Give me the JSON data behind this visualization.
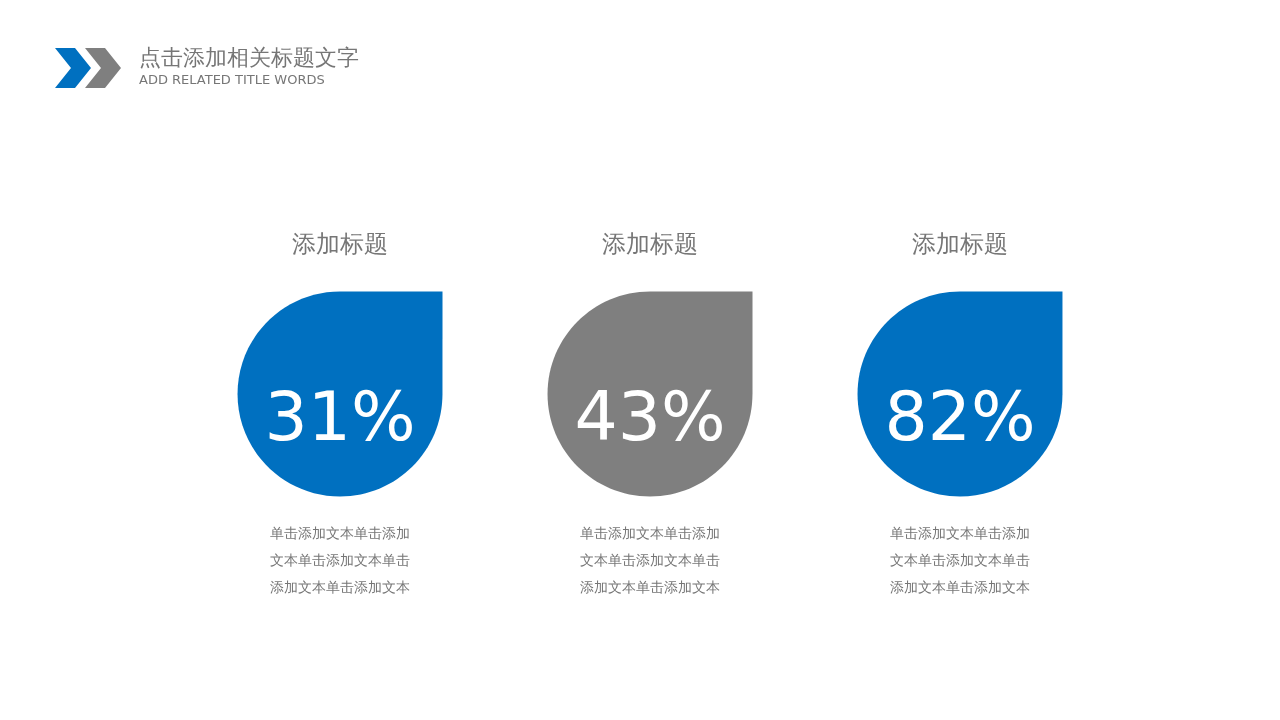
{
  "chart_data": {
    "type": "other",
    "title": "点击添加相关标题文字",
    "subtitle": "ADD RELATED TITLE WORDS",
    "categories": [
      "添加标题",
      "添加标题",
      "添加标题"
    ],
    "values": [
      31,
      43,
      82
    ],
    "value_labels": [
      "31%",
      "43%",
      "82%"
    ],
    "colors": [
      "#0070c0",
      "#7f7f7f",
      "#0070c0"
    ],
    "annotations": [
      "单击添加文本单击添加文本单击添加文本单击添加文本单击添加文本",
      "单击添加文本单击添加文本单击添加文本单击添加文本单击添加文本",
      "单击添加文本单击添加文本单击添加文本单击添加文本单击添加文本"
    ]
  }
}
